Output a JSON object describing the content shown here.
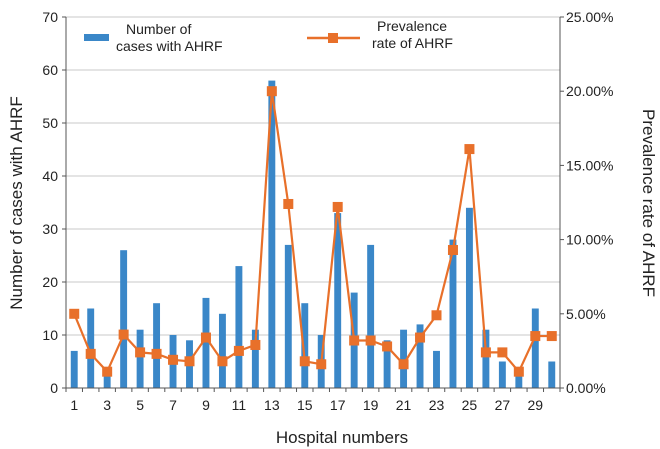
{
  "chart_data": {
    "type": "bar",
    "title": "",
    "xlabel": "Hospital numbers",
    "ylabel": "Number of cases with AHRF",
    "y2label": "Prevalence rate of AHRF",
    "x": [
      1,
      2,
      3,
      4,
      5,
      6,
      7,
      8,
      9,
      10,
      11,
      12,
      13,
      14,
      15,
      16,
      17,
      18,
      19,
      20,
      21,
      22,
      23,
      24,
      25,
      26,
      27,
      28,
      29,
      30
    ],
    "x_tick_labels": [
      "1",
      "3",
      "5",
      "7",
      "9",
      "11",
      "13",
      "15",
      "17",
      "19",
      "21",
      "23",
      "25",
      "27",
      "29"
    ],
    "x_tick_values": [
      1,
      3,
      5,
      7,
      9,
      11,
      13,
      15,
      17,
      19,
      21,
      23,
      25,
      27,
      29
    ],
    "ylim": [
      0,
      70
    ],
    "y_ticks": [
      0,
      10,
      20,
      30,
      40,
      50,
      60,
      70
    ],
    "y2lim": [
      0,
      25
    ],
    "y2_ticks": [
      0,
      5,
      10,
      15,
      20,
      25
    ],
    "y2_tick_labels": [
      "0.00%",
      "5.00%",
      "10.00%",
      "15.00%",
      "20.00%",
      "25.00%"
    ],
    "grid": true,
    "legend_position": "top",
    "series": [
      {
        "name": "Number of cases with AHRF",
        "type": "bar",
        "axis": "left",
        "color": "#3a87c8",
        "values": [
          7,
          15,
          3,
          26,
          11,
          16,
          10,
          9,
          17,
          14,
          23,
          11,
          58,
          27,
          16,
          10,
          33,
          18,
          27,
          9,
          11,
          12,
          7,
          28,
          34,
          11,
          5,
          3,
          15,
          5
        ]
      },
      {
        "name": "Prevalence rate of AHRF",
        "type": "line",
        "axis": "right",
        "color": "#e8702a",
        "values": [
          5.0,
          2.3,
          1.1,
          3.6,
          2.4,
          2.3,
          1.9,
          1.8,
          3.4,
          1.8,
          2.5,
          2.9,
          20.0,
          12.4,
          1.8,
          1.6,
          12.2,
          3.2,
          3.2,
          2.8,
          1.6,
          3.4,
          4.9,
          9.3,
          16.1,
          2.4,
          2.4,
          1.1,
          3.5,
          3.5
        ]
      }
    ],
    "legend": {
      "bar_label_line1": "Number of",
      "bar_label_line2": "cases with AHRF",
      "line_label_line1": "Prevalence",
      "line_label_line2": "rate of AHRF"
    }
  }
}
